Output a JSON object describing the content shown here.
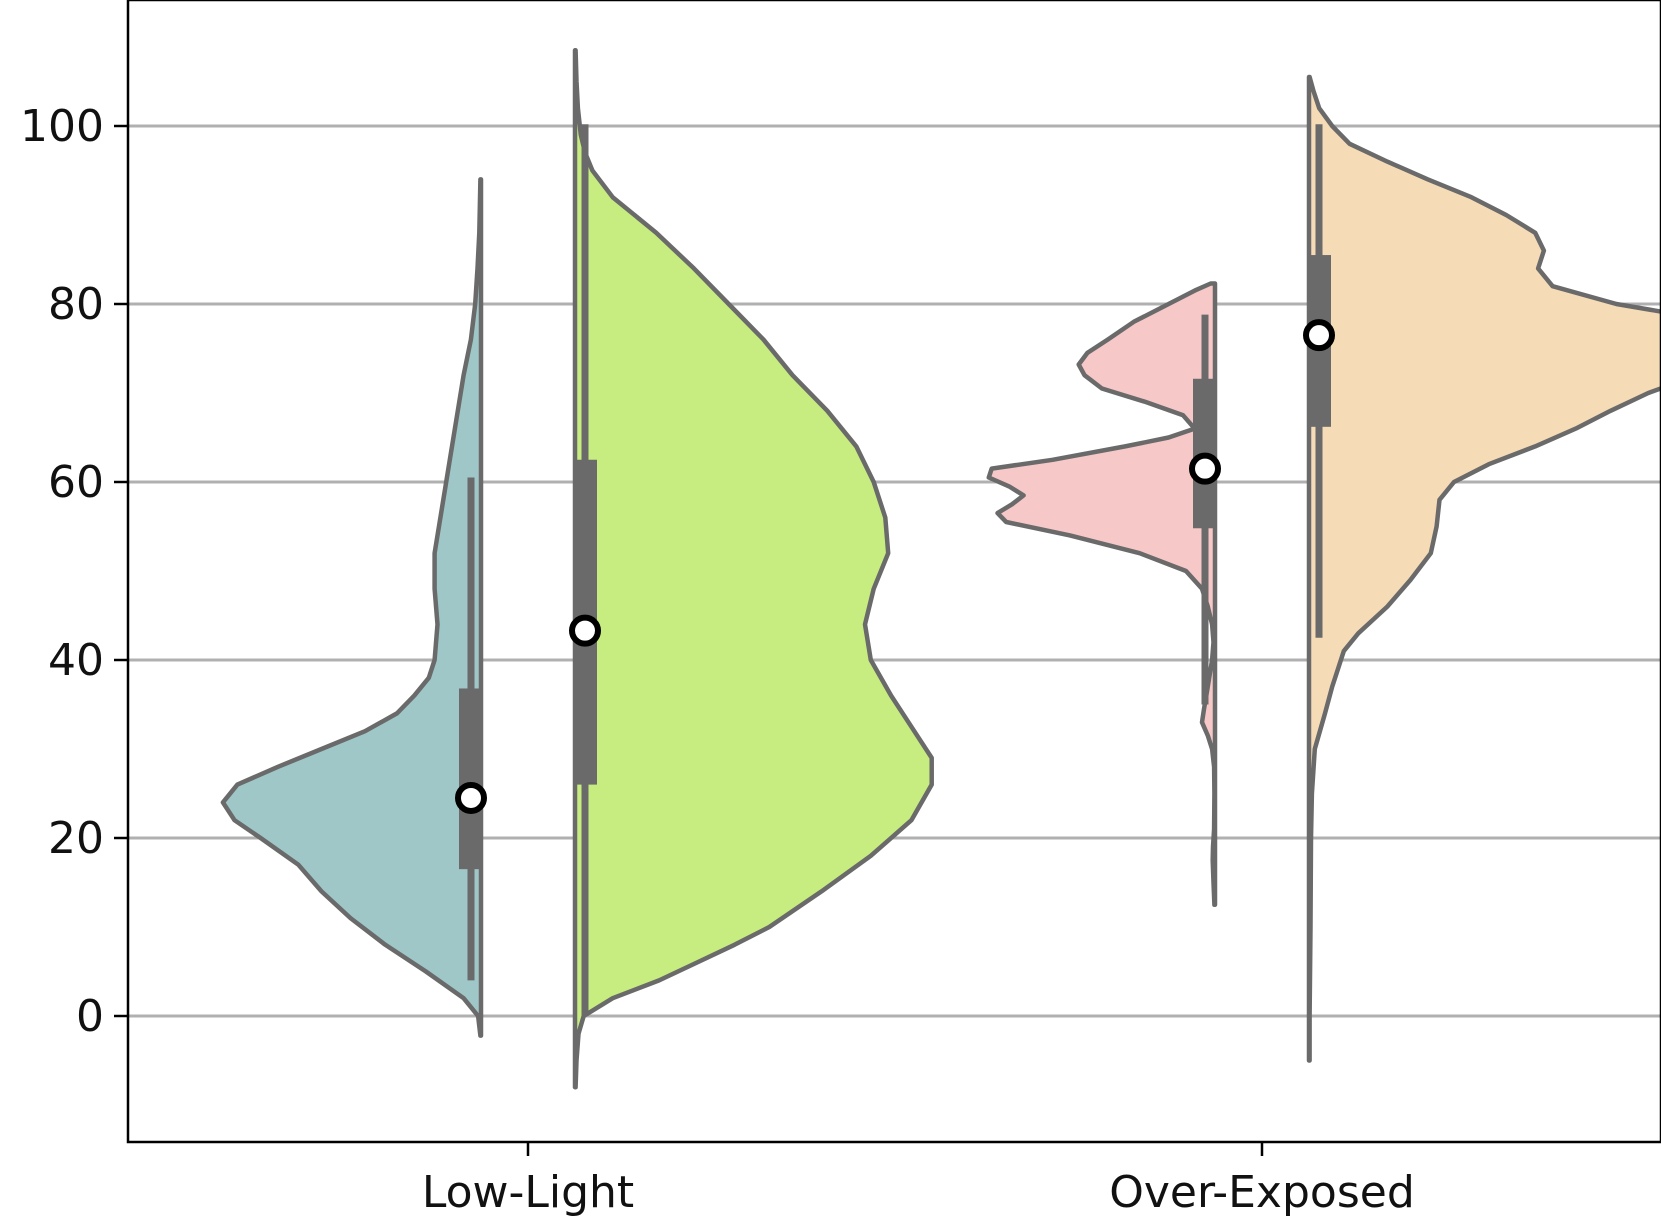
{
  "chart_data": {
    "type": "violin",
    "split": true,
    "title": "",
    "xlabel": "",
    "ylabel": "",
    "categories": [
      "Low-Light",
      "Over-Exposed"
    ],
    "ylim": [
      -14,
      114
    ],
    "yticks": [
      0,
      20,
      40,
      60,
      80,
      100
    ],
    "ytick_labels": [
      "0",
      "20",
      "40",
      "60",
      "80",
      "100"
    ],
    "grid": "horizontal",
    "legend": "none",
    "violins": [
      {
        "category": "Low-Light",
        "side": "left",
        "color": "#9fc7c8",
        "whisker": [
          4,
          60.5
        ],
        "q1": 16.5,
        "median": 24.5,
        "q3": 36.8,
        "profile": [
          [
            -2.2,
            0.02
          ],
          [
            0,
            0.1
          ],
          [
            2,
            0.6
          ],
          [
            5,
            1.9
          ],
          [
            8,
            3.3
          ],
          [
            11,
            4.5
          ],
          [
            14,
            5.5
          ],
          [
            17,
            6.3
          ],
          [
            20,
            7.6
          ],
          [
            22,
            8.5
          ],
          [
            24,
            8.9
          ],
          [
            26,
            8.4
          ],
          [
            28,
            7.0
          ],
          [
            30,
            5.5
          ],
          [
            32,
            4.0
          ],
          [
            34,
            2.9
          ],
          [
            36,
            2.3
          ],
          [
            38,
            1.8
          ],
          [
            40,
            1.6
          ],
          [
            44,
            1.5
          ],
          [
            48,
            1.6
          ],
          [
            52,
            1.6
          ],
          [
            56,
            1.4
          ],
          [
            60,
            1.2
          ],
          [
            64,
            1.0
          ],
          [
            68,
            0.8
          ],
          [
            72,
            0.6
          ],
          [
            76,
            0.35
          ],
          [
            80,
            0.2
          ],
          [
            84,
            0.12
          ],
          [
            88,
            0.06
          ],
          [
            94,
            0.02
          ]
        ]
      },
      {
        "category": "Low-Light",
        "side": "right",
        "color": "#c7ed81",
        "whisker": [
          0,
          100.2
        ],
        "q1": 26,
        "median": 43.3,
        "q3": 62.5,
        "profile": [
          [
            -8,
            0.02
          ],
          [
            -5,
            0.05
          ],
          [
            -2,
            0.12
          ],
          [
            0,
            0.3
          ],
          [
            2,
            1.3
          ],
          [
            4,
            2.9
          ],
          [
            6,
            4.2
          ],
          [
            8,
            5.5
          ],
          [
            10,
            6.7
          ],
          [
            14,
            8.5
          ],
          [
            18,
            10.2
          ],
          [
            22,
            11.6
          ],
          [
            26,
            12.3
          ],
          [
            29,
            12.3
          ],
          [
            32,
            11.7
          ],
          [
            36,
            10.9
          ],
          [
            40,
            10.2
          ],
          [
            44,
            10.0
          ],
          [
            48,
            10.3
          ],
          [
            52,
            10.8
          ],
          [
            56,
            10.7
          ],
          [
            60,
            10.3
          ],
          [
            64,
            9.7
          ],
          [
            68,
            8.7
          ],
          [
            72,
            7.5
          ],
          [
            76,
            6.5
          ],
          [
            80,
            5.3
          ],
          [
            84,
            4.1
          ],
          [
            88,
            2.8
          ],
          [
            92,
            1.3
          ],
          [
            95,
            0.6
          ],
          [
            97,
            0.35
          ],
          [
            99,
            0.2
          ],
          [
            102,
            0.1
          ],
          [
            105,
            0.05
          ],
          [
            108.5,
            0.02
          ]
        ]
      },
      {
        "category": "Over-Exposed",
        "side": "left",
        "color": "#f7c8c8",
        "whisker": [
          35,
          78.8
        ],
        "q1": 54.8,
        "median": 61.5,
        "q3": 71.6,
        "profile": [
          [
            12.5,
            0.02
          ],
          [
            15,
            0.05
          ],
          [
            17.5,
            0.08
          ],
          [
            19,
            0.07
          ],
          [
            21,
            0.03
          ],
          [
            25,
            0.02
          ],
          [
            28,
            0.03
          ],
          [
            30,
            0.1
          ],
          [
            31.5,
            0.25
          ],
          [
            33,
            0.45
          ],
          [
            34.5,
            0.38
          ],
          [
            36,
            0.3
          ],
          [
            38,
            0.2
          ],
          [
            40,
            0.1
          ],
          [
            42,
            0.05
          ],
          [
            44,
            0.1
          ],
          [
            46,
            0.25
          ],
          [
            48,
            0.45
          ],
          [
            50,
            1.0
          ],
          [
            52,
            2.6
          ],
          [
            54,
            5.0
          ],
          [
            55.5,
            7.2
          ],
          [
            56.5,
            7.5
          ],
          [
            57.5,
            7.0
          ],
          [
            58.5,
            6.6
          ],
          [
            59.5,
            7.1
          ],
          [
            60.5,
            7.8
          ],
          [
            61.5,
            7.7
          ],
          [
            62.5,
            5.6
          ],
          [
            64,
            3.1
          ],
          [
            65,
            1.6
          ],
          [
            66,
            0.7
          ],
          [
            67.5,
            1.1
          ],
          [
            69,
            2.4
          ],
          [
            70.5,
            3.9
          ],
          [
            72,
            4.5
          ],
          [
            73.2,
            4.7
          ],
          [
            74.5,
            4.4
          ],
          [
            76,
            3.7
          ],
          [
            78,
            2.8
          ],
          [
            80,
            1.6
          ],
          [
            81.5,
            0.7
          ],
          [
            82.3,
            0.15
          ]
        ]
      },
      {
        "category": "Over-Exposed",
        "side": "right",
        "color": "#f6dbb7",
        "whisker": [
          42.5,
          100.2
        ],
        "q1": 66.2,
        "median": 76.5,
        "q3": 85.5,
        "profile": [
          [
            -5,
            0.02
          ],
          [
            0,
            0.02
          ],
          [
            10,
            0.05
          ],
          [
            20,
            0.07
          ],
          [
            25,
            0.1
          ],
          [
            30,
            0.2
          ],
          [
            34,
            0.55
          ],
          [
            37,
            0.8
          ],
          [
            39,
            1.0
          ],
          [
            41,
            1.2
          ],
          [
            43,
            1.7
          ],
          [
            46,
            2.7
          ],
          [
            49,
            3.5
          ],
          [
            52,
            4.2
          ],
          [
            55,
            4.4
          ],
          [
            58,
            4.5
          ],
          [
            60,
            5.0
          ],
          [
            62,
            6.2
          ],
          [
            64,
            7.8
          ],
          [
            66,
            9.2
          ],
          [
            68,
            10.4
          ],
          [
            70,
            11.7
          ],
          [
            72,
            13.4
          ],
          [
            74,
            15.3
          ],
          [
            76,
            16.1
          ],
          [
            78,
            14.2
          ],
          [
            80,
            10.6
          ],
          [
            82,
            8.4
          ],
          [
            84,
            7.9
          ],
          [
            86,
            8.1
          ],
          [
            88,
            7.8
          ],
          [
            90,
            6.8
          ],
          [
            92,
            5.6
          ],
          [
            94,
            4.1
          ],
          [
            96,
            2.7
          ],
          [
            98,
            1.4
          ],
          [
            100,
            0.8
          ],
          [
            102,
            0.35
          ],
          [
            104,
            0.15
          ],
          [
            105.5,
            0.02
          ]
        ]
      }
    ]
  }
}
